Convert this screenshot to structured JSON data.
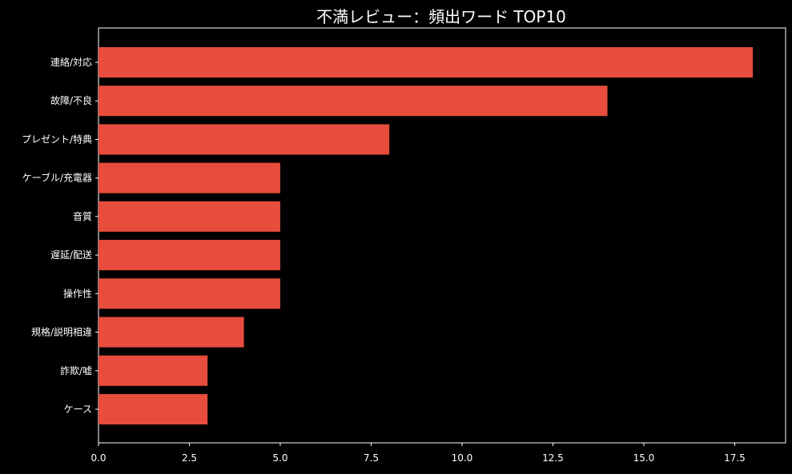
{
  "colors": {
    "background": "#000000",
    "bar": "#e74c3c",
    "axis": "#ffffff",
    "text": "#ffffff"
  },
  "chart_data": {
    "type": "bar",
    "orientation": "horizontal",
    "title": "不満レビュー：頻出ワード TOP10",
    "xlabel": "",
    "ylabel": "",
    "categories": [
      "連絡/対応",
      "故障/不良",
      "プレゼント/特典",
      "ケーブル/充電器",
      "音質",
      "遅延/配送",
      "操作性",
      "規格/説明相違",
      "詐欺/嘘",
      "ケース"
    ],
    "values": [
      18,
      14,
      8,
      5,
      5,
      5,
      5,
      4,
      3,
      3
    ],
    "xlim": [
      0,
      18.9
    ],
    "xticks": [
      "0.0",
      "2.5",
      "5.0",
      "7.5",
      "10.0",
      "12.5",
      "15.0",
      "17.5"
    ],
    "grid": false,
    "legend": "none"
  }
}
